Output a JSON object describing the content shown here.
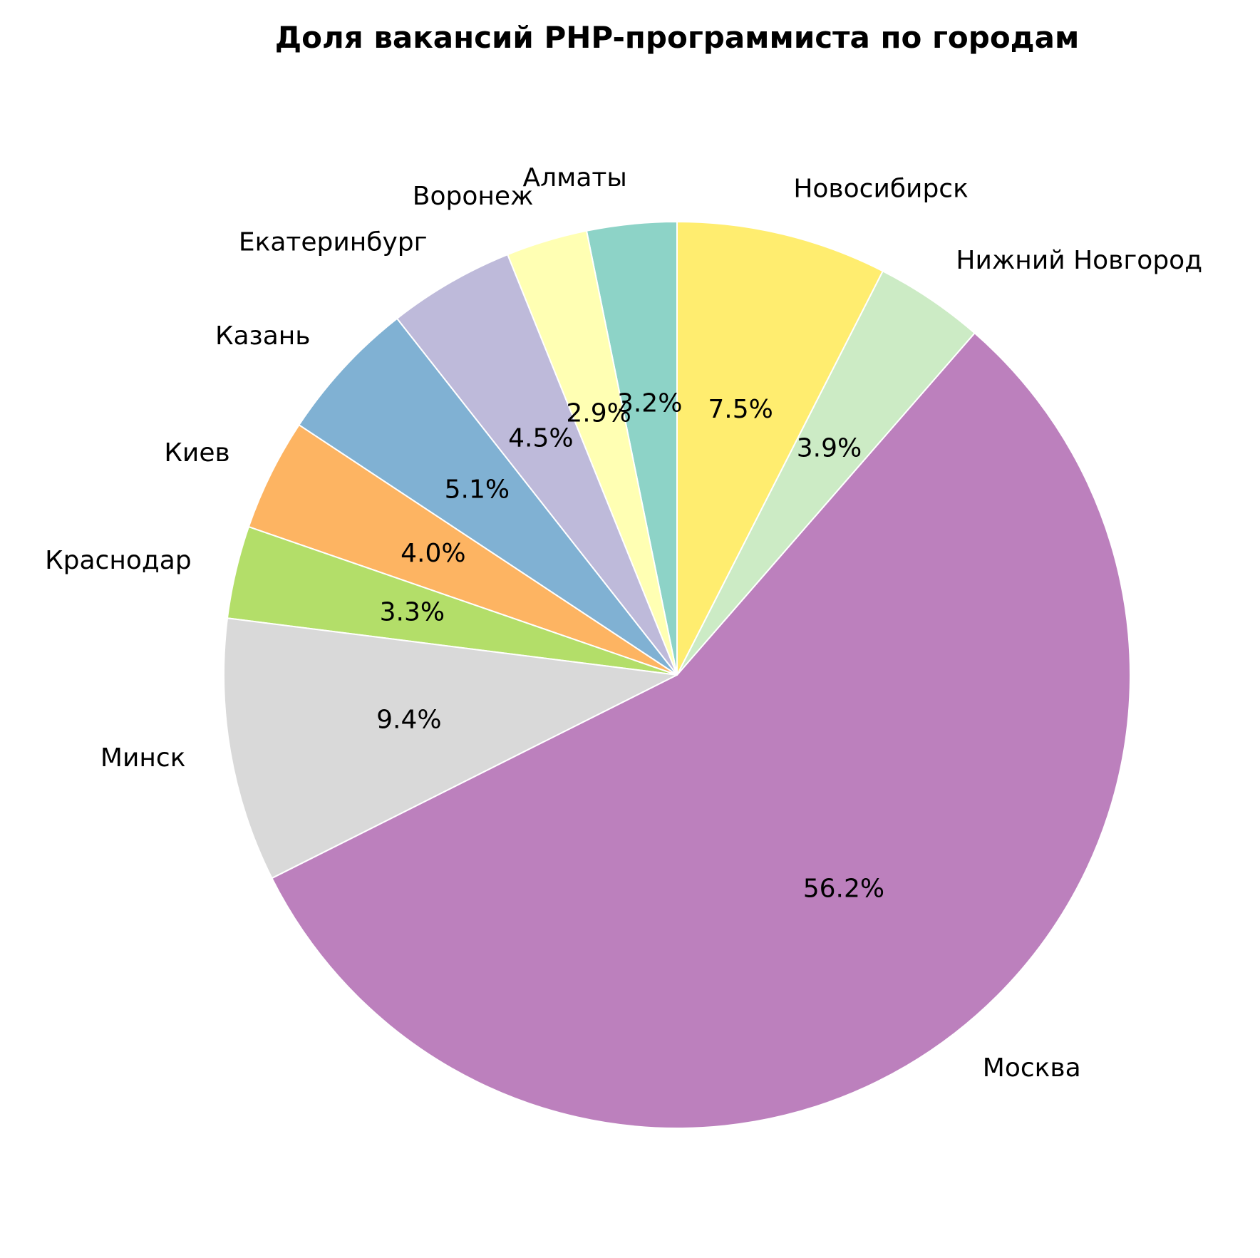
{
  "chart_data": {
    "type": "pie",
    "title": "Доля вакансий PHP-программиста по городам",
    "start_angle_deg": 90,
    "direction": "counterclockwise",
    "slices": [
      {
        "label": "Алматы",
        "value": 3.2,
        "pct_text": "3.2%",
        "color": "#8dd3c7"
      },
      {
        "label": "Воронеж",
        "value": 2.9,
        "pct_text": "2.9%",
        "color": "#ffffb3"
      },
      {
        "label": "Екатеринбург",
        "value": 4.5,
        "pct_text": "4.5%",
        "color": "#bebada"
      },
      {
        "label": "Казань",
        "value": 5.1,
        "pct_text": "5.1%",
        "color": "#80b1d3"
      },
      {
        "label": "Киев",
        "value": 4.0,
        "pct_text": "4.0%",
        "color": "#fdb462"
      },
      {
        "label": "Краснодар",
        "value": 3.3,
        "pct_text": "3.3%",
        "color": "#b3de69"
      },
      {
        "label": "Минск",
        "value": 9.4,
        "pct_text": "9.4%",
        "color": "#d9d9d9"
      },
      {
        "label": "Москва",
        "value": 56.2,
        "pct_text": "56.2%",
        "color": "#bc80bd"
      },
      {
        "label": "Нижний Новгород",
        "value": 3.9,
        "pct_text": "3.9%",
        "color": "#ccebc5"
      },
      {
        "label": "Новосибирск",
        "value": 7.5,
        "pct_text": "7.5%",
        "color": "#ffed6f"
      }
    ]
  }
}
